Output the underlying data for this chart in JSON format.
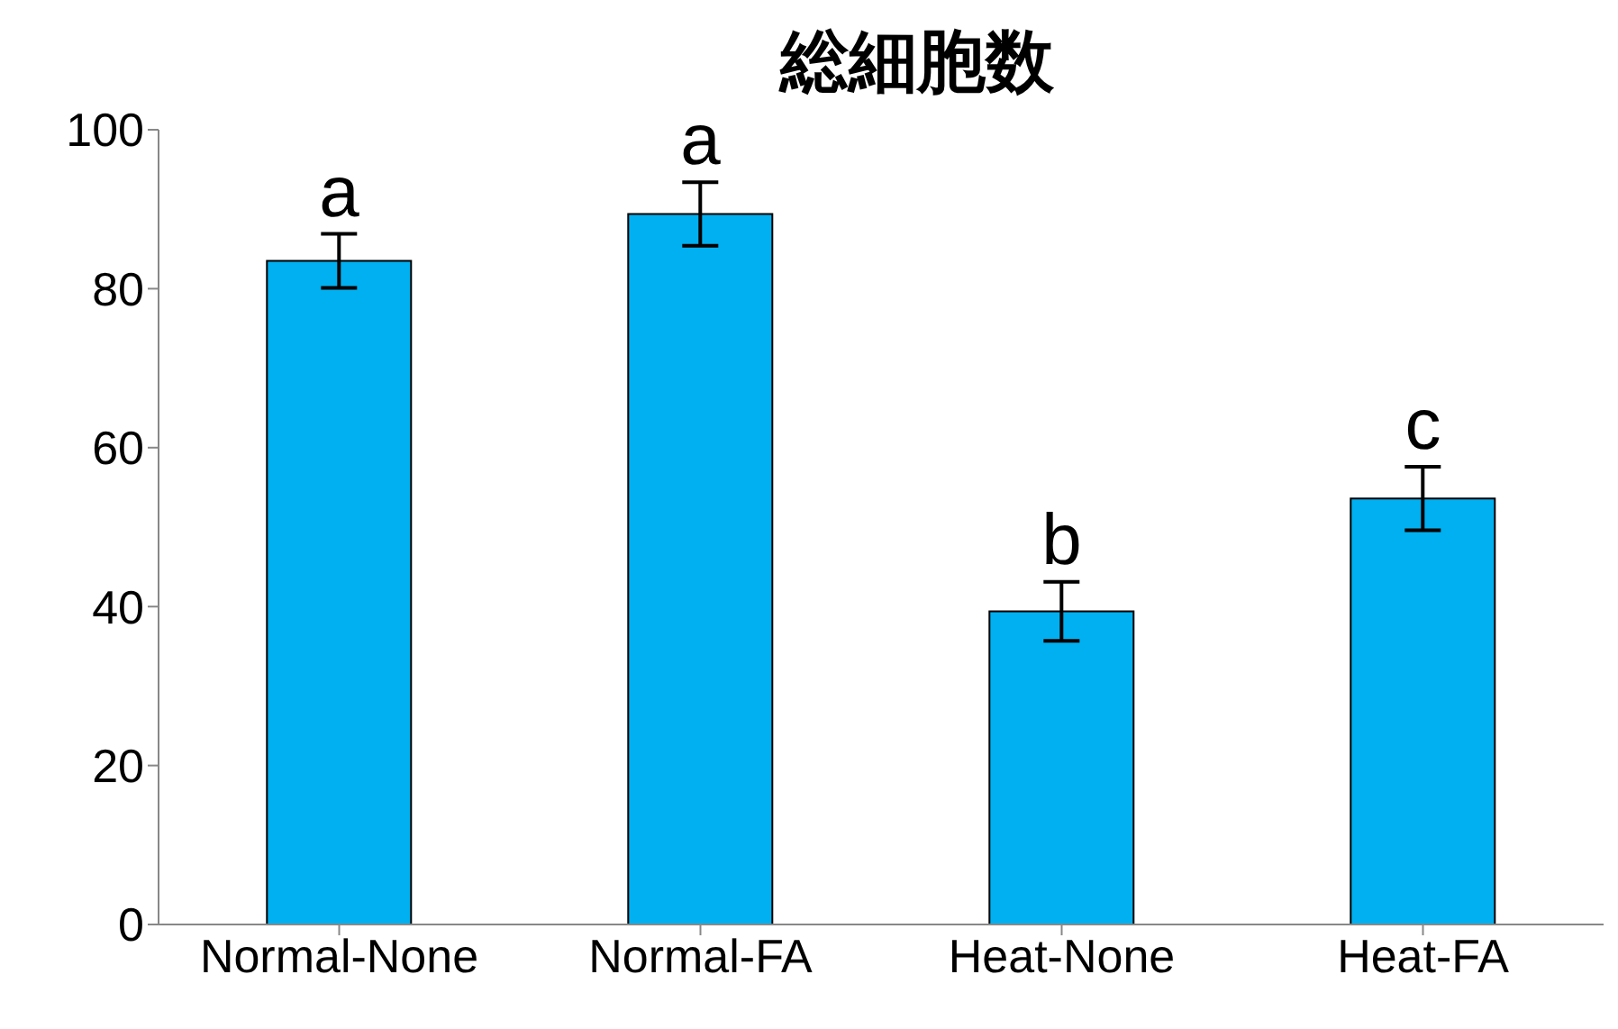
{
  "chart_data": {
    "type": "bar",
    "title": "総細胞数",
    "categories": [
      "Normal-None",
      "Normal-FA",
      "Heat-None",
      "Heat-FA"
    ],
    "values": [
      83.5,
      89.4,
      39.4,
      53.6
    ],
    "errors": [
      3.4,
      4,
      3.7,
      4
    ],
    "color": "#00b0f0",
    "ylim": [
      0,
      100
    ],
    "yticks": [
      0,
      20,
      40,
      60,
      80,
      100
    ],
    "grid": false,
    "annotations": [
      {
        "text": "a",
        "x": "Normal-None",
        "y": 86.9
      },
      {
        "text": "a",
        "x": "Normal-FA",
        "y": 93.4
      },
      {
        "text": "b",
        "x": "Heat-None",
        "y": 43.1
      },
      {
        "text": "c",
        "x": "Heat-FA",
        "y": 57.6
      }
    ]
  }
}
